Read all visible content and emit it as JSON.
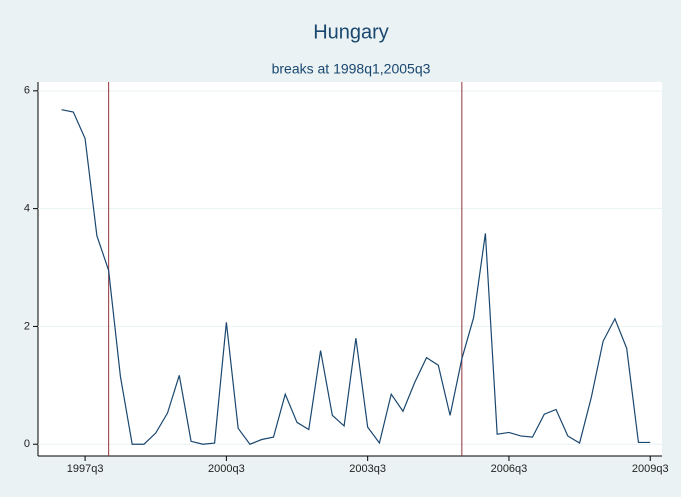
{
  "chart_data": {
    "type": "line",
    "title": "Hungary",
    "subtitle": "breaks at 1998q1,2005q3",
    "x": [
      "1997q1",
      "1997q2",
      "1997q3",
      "1997q4",
      "1998q1",
      "1998q2",
      "1998q3",
      "1998q4",
      "1999q1",
      "1999q2",
      "1999q3",
      "1999q4",
      "2000q1",
      "2000q2",
      "2000q3",
      "2000q4",
      "2001q1",
      "2001q2",
      "2001q3",
      "2001q4",
      "2002q1",
      "2002q2",
      "2002q3",
      "2002q4",
      "2003q1",
      "2003q2",
      "2003q3",
      "2003q4",
      "2004q1",
      "2004q2",
      "2004q3",
      "2004q4",
      "2005q1",
      "2005q2",
      "2005q3",
      "2005q4",
      "2006q1",
      "2006q2",
      "2006q3",
      "2006q4",
      "2007q1",
      "2007q2",
      "2007q3",
      "2007q4",
      "2008q1",
      "2008q2",
      "2008q3",
      "2008q4",
      "2009q1",
      "2009q2",
      "2009q3"
    ],
    "series": [
      {
        "color": "#1a476f",
        "values": [
          5.68,
          5.64,
          5.19,
          3.54,
          2.95,
          1.15,
          0.0,
          0.0,
          0.19,
          0.53,
          1.17,
          0.05,
          0.0,
          0.02,
          2.07,
          0.27,
          0.0,
          0.08,
          0.12,
          0.85,
          0.37,
          0.25,
          1.59,
          0.49,
          0.31,
          1.8,
          0.29,
          0.02,
          0.85,
          0.56,
          1.05,
          1.47,
          1.34,
          0.49,
          1.45,
          2.15,
          3.58,
          0.17,
          0.2,
          0.14,
          0.12,
          0.51,
          0.59,
          0.14,
          0.02,
          0.8,
          1.75,
          2.13,
          1.63,
          0.03,
          0.03
        ]
      }
    ],
    "breaks": [
      "1998q1",
      "2005q3"
    ],
    "break_color": "#90353b",
    "xlim": [
      "1996q3",
      "2009q4"
    ],
    "xticks": [
      "1997q3",
      "2000q3",
      "2003q3",
      "2006q3",
      "2009q3"
    ],
    "ylim": [
      -0.2,
      6.15
    ],
    "yticks": [
      0,
      2,
      4,
      6
    ],
    "grid": true
  }
}
